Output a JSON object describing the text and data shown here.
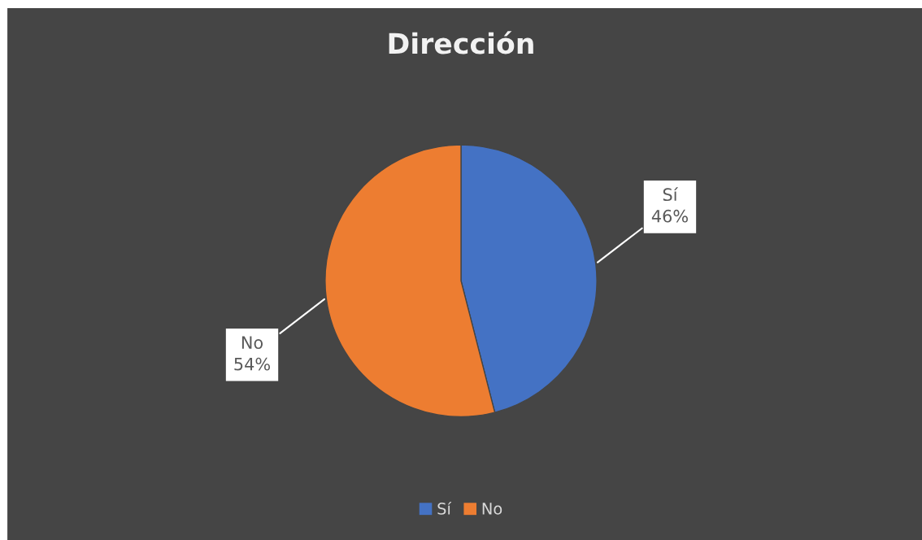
{
  "chart_data": {
    "type": "pie",
    "title": "Dirección",
    "categories": [
      "Sí",
      "No"
    ],
    "values": [
      46,
      54
    ],
    "colors": [
      "#4472c4",
      "#ed7d31"
    ],
    "value_labels": [
      "46%",
      "54%"
    ],
    "legend": "bottom"
  }
}
